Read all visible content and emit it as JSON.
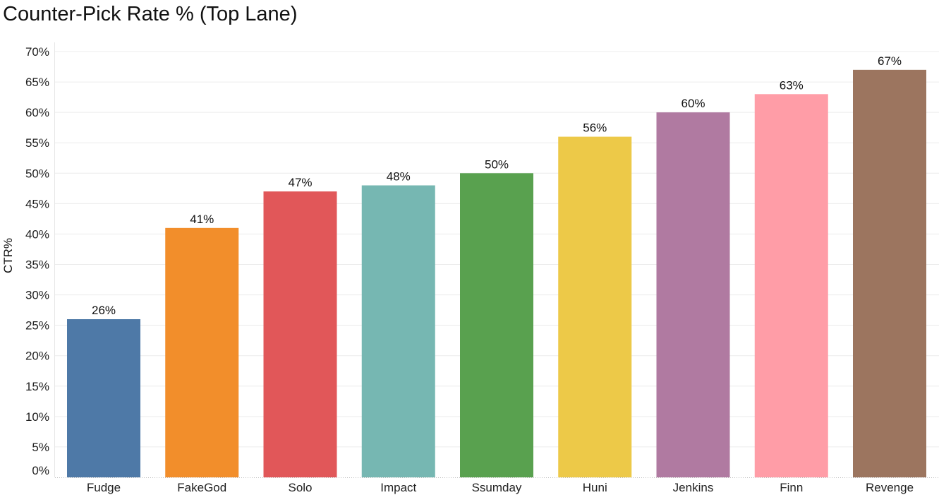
{
  "chart_data": {
    "type": "bar",
    "title": "Counter-Pick Rate % (Top Lane)",
    "xlabel": "",
    "ylabel": "CTR%",
    "ylim": [
      0,
      70
    ],
    "yticks": [
      0,
      5,
      10,
      15,
      20,
      25,
      30,
      35,
      40,
      45,
      50,
      55,
      60,
      65,
      70
    ],
    "ytick_labels": [
      "0%",
      "5%",
      "10%",
      "15%",
      "20%",
      "25%",
      "30%",
      "35%",
      "40%",
      "45%",
      "50%",
      "55%",
      "60%",
      "65%",
      "70%"
    ],
    "grid": true,
    "legend": "none",
    "categories": [
      "Fudge",
      "FakeGod",
      "Solo",
      "Impact",
      "Ssumday",
      "Huni",
      "Jenkins",
      "Finn",
      "Revenge"
    ],
    "values": [
      26,
      41,
      47,
      48,
      50,
      56,
      60,
      63,
      67
    ],
    "data_labels": [
      "26%",
      "41%",
      "47%",
      "48%",
      "50%",
      "56%",
      "60%",
      "63%",
      "67%"
    ],
    "colors": [
      "#4e79a7",
      "#f28e2b",
      "#e15759",
      "#76b7b2",
      "#59a14f",
      "#edc948",
      "#b07aa1",
      "#ff9da7",
      "#9c755f"
    ]
  }
}
